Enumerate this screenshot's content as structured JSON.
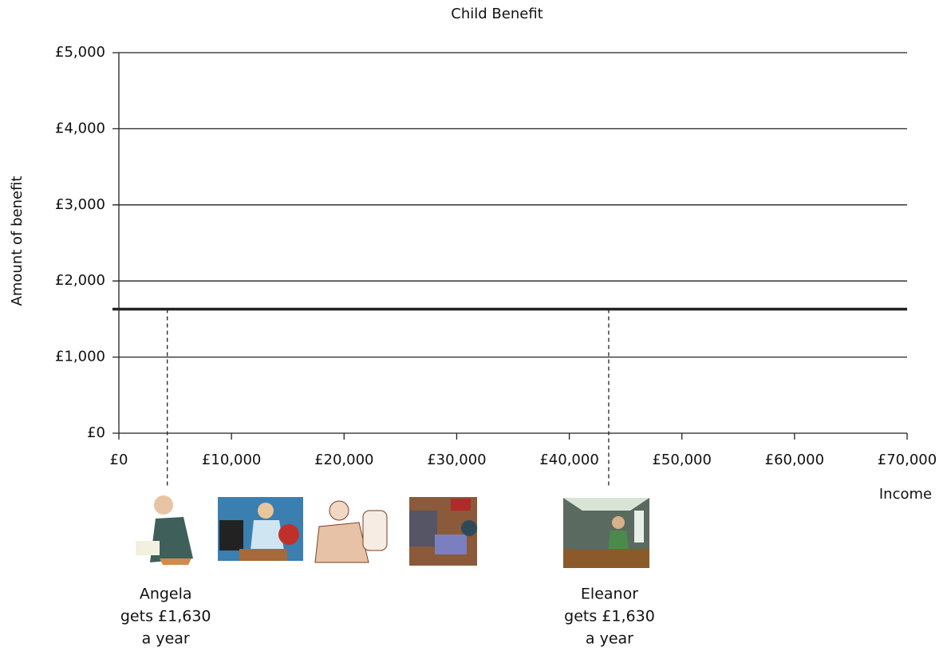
{
  "chart_data": {
    "type": "line",
    "title": "Child Benefit",
    "y_label": "Amount of benefit",
    "x_label": "Income",
    "x": [
      0,
      70000
    ],
    "series": [
      {
        "name": "Child Benefit",
        "color": "#222222",
        "values": [
          1630,
          1630
        ]
      }
    ],
    "xlim": [
      0,
      70000
    ],
    "xticks": [
      {
        "value": 0,
        "label": "£0"
      },
      {
        "value": 10000,
        "label": "£10,000"
      },
      {
        "value": 20000,
        "label": "£20,000"
      },
      {
        "value": 30000,
        "label": "£30,000"
      },
      {
        "value": 40000,
        "label": "£40,000"
      },
      {
        "value": 50000,
        "label": "£50,000"
      },
      {
        "value": 60000,
        "label": "£60,000"
      },
      {
        "value": 70000,
        "label": "£70,000"
      }
    ],
    "ylim": [
      0,
      5000
    ],
    "yticks": [
      {
        "value": 0,
        "label": "£0"
      },
      {
        "value": 1000,
        "label": "£1,000"
      },
      {
        "value": 2000,
        "label": "£2,000"
      },
      {
        "value": 3000,
        "label": "£3,000"
      },
      {
        "value": 4000,
        "label": "£4,000"
      },
      {
        "value": 5000,
        "label": "£5,000"
      }
    ],
    "grid": true,
    "annotations": [
      {
        "x": 4300,
        "lines": [
          "Angela",
          "gets £1,630",
          "a year"
        ]
      },
      {
        "x": 43500,
        "lines": [
          "Eleanor",
          "gets £1,630",
          "a year"
        ]
      }
    ]
  }
}
